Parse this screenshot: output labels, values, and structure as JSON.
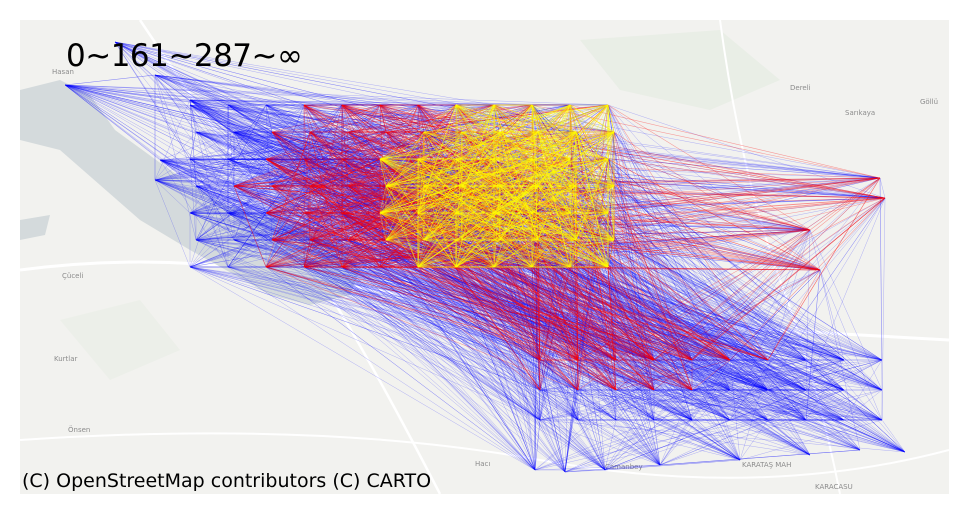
{
  "map": {
    "legend": "0~161~287~∞",
    "attribution": "(C) OpenStreetMap contributors (C) CARTO",
    "places": [
      "Hasan",
      "Dereli",
      "Sarıkaya",
      "Göllü",
      "Çüceli",
      "Kurtlar",
      "Önsen",
      "Hacı",
      "Camanbey",
      "KARATAŞ MAH",
      "KARACASU"
    ],
    "colors": {
      "background": "#f2f2ef",
      "water": "#d4dadc",
      "road": "#ffffff",
      "low_flow": "#0000ff",
      "mid_flow": "#ff0000",
      "high_flow": "#ffff00"
    },
    "flow_thresholds": [
      0,
      161,
      287,
      "∞"
    ]
  }
}
